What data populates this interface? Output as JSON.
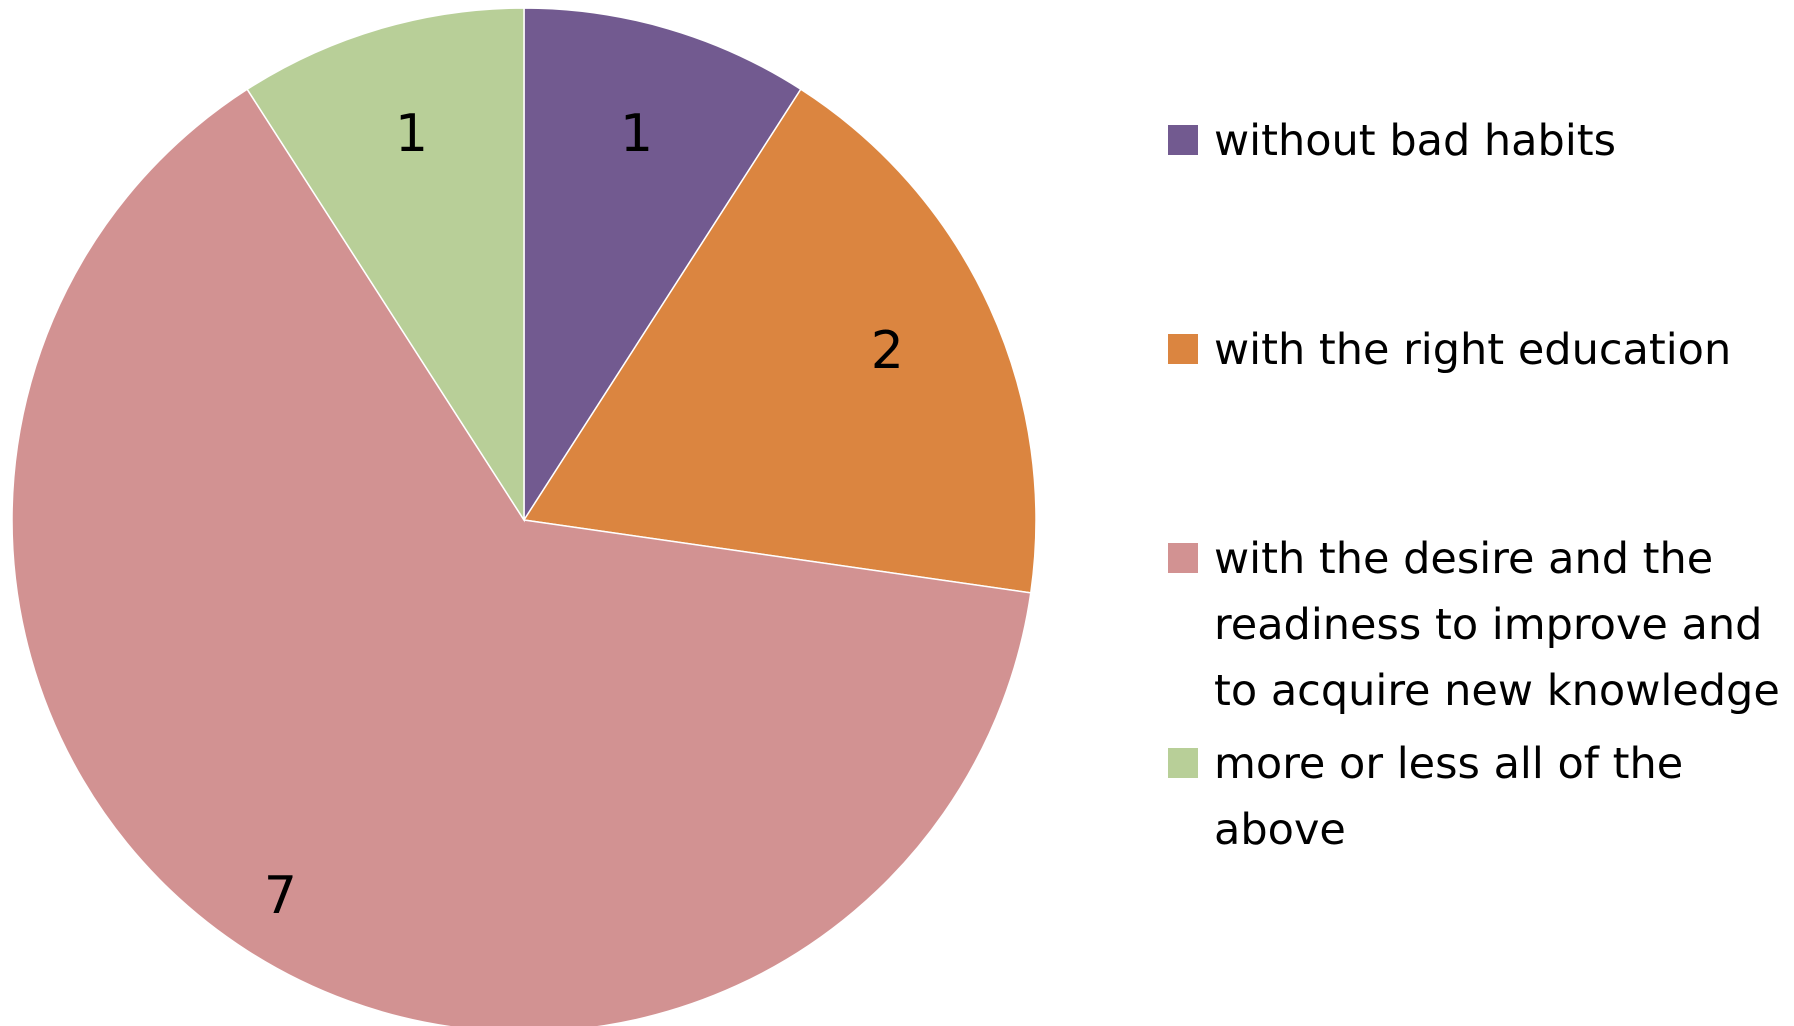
{
  "chart_data": {
    "type": "pie",
    "title": "",
    "start_angle_deg": 0,
    "direction": "clockwise",
    "legend_position": "right",
    "slices": [
      {
        "label": "without bad habits",
        "value": 1,
        "color": "#725a90"
      },
      {
        "label": "with the right education",
        "value": 2,
        "color": "#db8540"
      },
      {
        "label": "with the desire and the readiness to improve and to acquire new knowledge",
        "value": 7,
        "color": "#d29292"
      },
      {
        "label": "more or less all of the above",
        "value": 1,
        "color": "#b8cf98"
      }
    ]
  }
}
